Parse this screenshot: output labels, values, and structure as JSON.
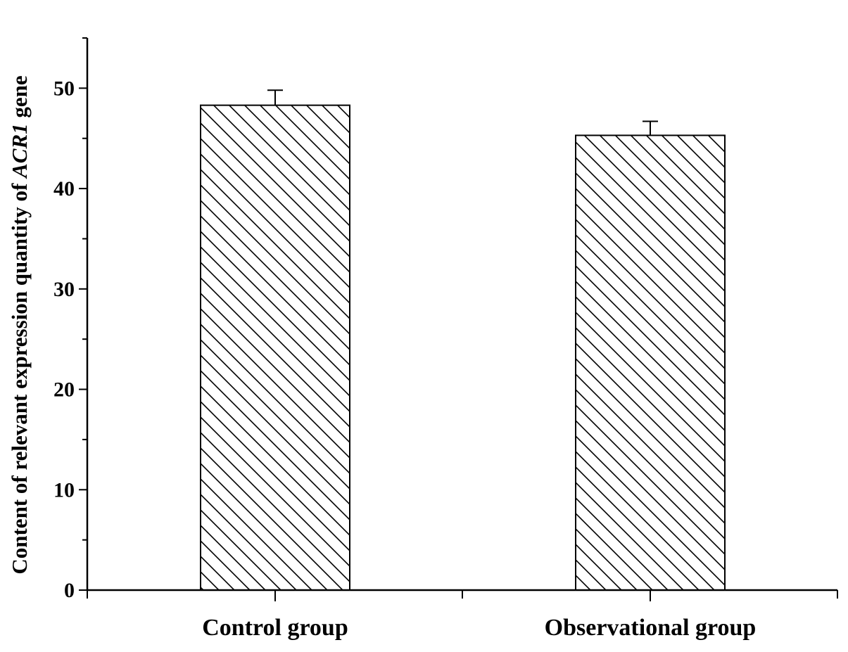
{
  "chart_data": {
    "type": "bar",
    "title": "",
    "xlabel": "",
    "ylabel": {
      "prefix": "Content of relevant expression quantity of ",
      "gene": "ACR1",
      "suffix": " gene"
    },
    "categories": [
      "Control group",
      "Observational group"
    ],
    "values": [
      48.3,
      45.3
    ],
    "errors": [
      1.5,
      1.4
    ],
    "ylim": [
      0,
      55
    ],
    "yticks": [
      0,
      10,
      20,
      30,
      40,
      50
    ],
    "yminor_step": 5,
    "grid": false,
    "bar_fill": "diagonal-hatch",
    "colors": {
      "bar_stroke": "#000000",
      "hatch": "#000000",
      "background": "#ffffff"
    }
  }
}
